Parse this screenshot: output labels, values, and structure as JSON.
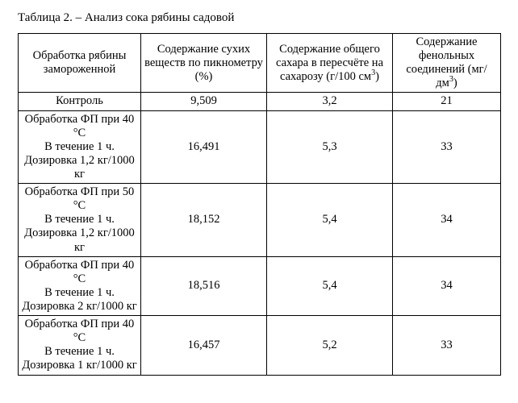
{
  "caption": "Таблица 2. – Анализ сока рябины садовой",
  "columns": {
    "c1": "Обработка рябины замороженной",
    "c2": "Содержание сухих веществ по пикнометру (%)",
    "c3_a": "Содержание общего сахара в пересчёте на сахарозу (г/100 см",
    "c3_b": ")",
    "c4_a": "Содержание фенольных соединений (мг/дм",
    "c4_b": ")"
  },
  "rows": [
    {
      "label": "Контроль",
      "dry": "9,509",
      "sugar": "3,2",
      "phenol": "21"
    },
    {
      "label": "Обработка ФП при 40 °C\nВ течение 1 ч.\nДозировка 1,2 кг/1000 кг",
      "dry": "16,491",
      "sugar": "5,3",
      "phenol": "33"
    },
    {
      "label": "Обработка ФП при 50 °C\nВ течение 1 ч.\nДозировка 1,2 кг/1000 кг",
      "dry": "18,152",
      "sugar": "5,4",
      "phenol": "34"
    },
    {
      "label": "Обработка ФП при 40 °C\nВ течение 1 ч.\nДозировка 2 кг/1000 кг",
      "dry": "18,516",
      "sugar": "5,4",
      "phenol": "34"
    },
    {
      "label": "Обработка ФП при 40 °C\nВ течение 1 ч.\nДозировка 1 кг/1000 кг",
      "dry": "16,457",
      "sugar": "5,2",
      "phenol": "33"
    }
  ]
}
